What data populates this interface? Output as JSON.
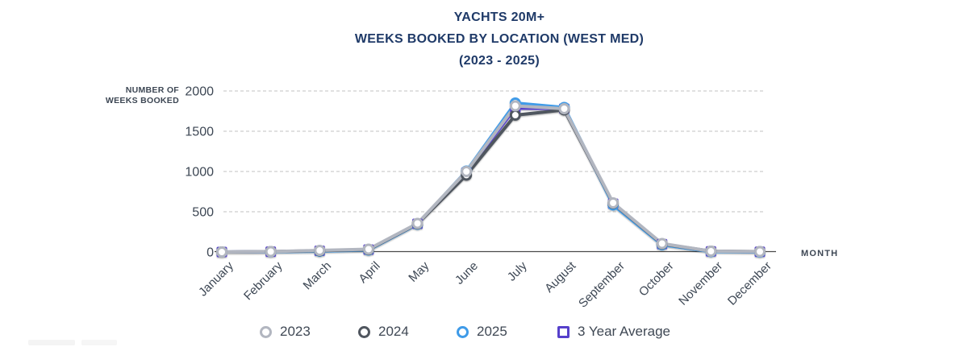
{
  "title": {
    "line1": "YACHTS 20M+",
    "line2": "WEEKS BOOKED BY LOCATION (WEST MED)",
    "line3": "(2023 - 2025)"
  },
  "chart_data": {
    "type": "line",
    "title": "YACHTS 20M+ WEEKS BOOKED BY LOCATION (WEST MED) (2023 - 2025)",
    "categories": [
      "January",
      "February",
      "March",
      "April",
      "May",
      "June",
      "July",
      "August",
      "September",
      "October",
      "November",
      "December"
    ],
    "series": [
      {
        "name": "2023",
        "color": "#b2b6c0",
        "marker": "circle",
        "values": [
          0,
          5,
          20,
          35,
          355,
          1000,
          1815,
          1780,
          610,
          105,
          10,
          5
        ]
      },
      {
        "name": "2024",
        "color": "#50565f",
        "marker": "circle",
        "values": [
          0,
          5,
          15,
          30,
          350,
          955,
          1700,
          1765,
          605,
          100,
          10,
          5
        ]
      },
      {
        "name": "2025",
        "color": "#3f9be8",
        "marker": "circle",
        "values": [
          0,
          3,
          10,
          25,
          345,
          1005,
          1850,
          1795,
          585,
          90,
          5,
          0
        ]
      },
      {
        "name": "3 Year Average",
        "color": "#5640cb",
        "marker": "square",
        "values": [
          0,
          4,
          15,
          30,
          350,
          987,
          1788,
          1780,
          600,
          98,
          8,
          3
        ]
      }
    ],
    "ylabel_line1": "NUMBER OF",
    "ylabel_line2": "WEEKS BOOKED",
    "xlabel": "MONTH",
    "yticks": [
      0,
      500,
      1000,
      1500,
      2000
    ],
    "ylim": [
      0,
      2000
    ],
    "grid": "horizontal-dashed",
    "legend_position": "bottom",
    "colors": {
      "title_text": "#1f3a68",
      "axis_text": "#3d4754",
      "axis_line": "#4a4a4a",
      "gridline": "#c2c2c2"
    }
  }
}
